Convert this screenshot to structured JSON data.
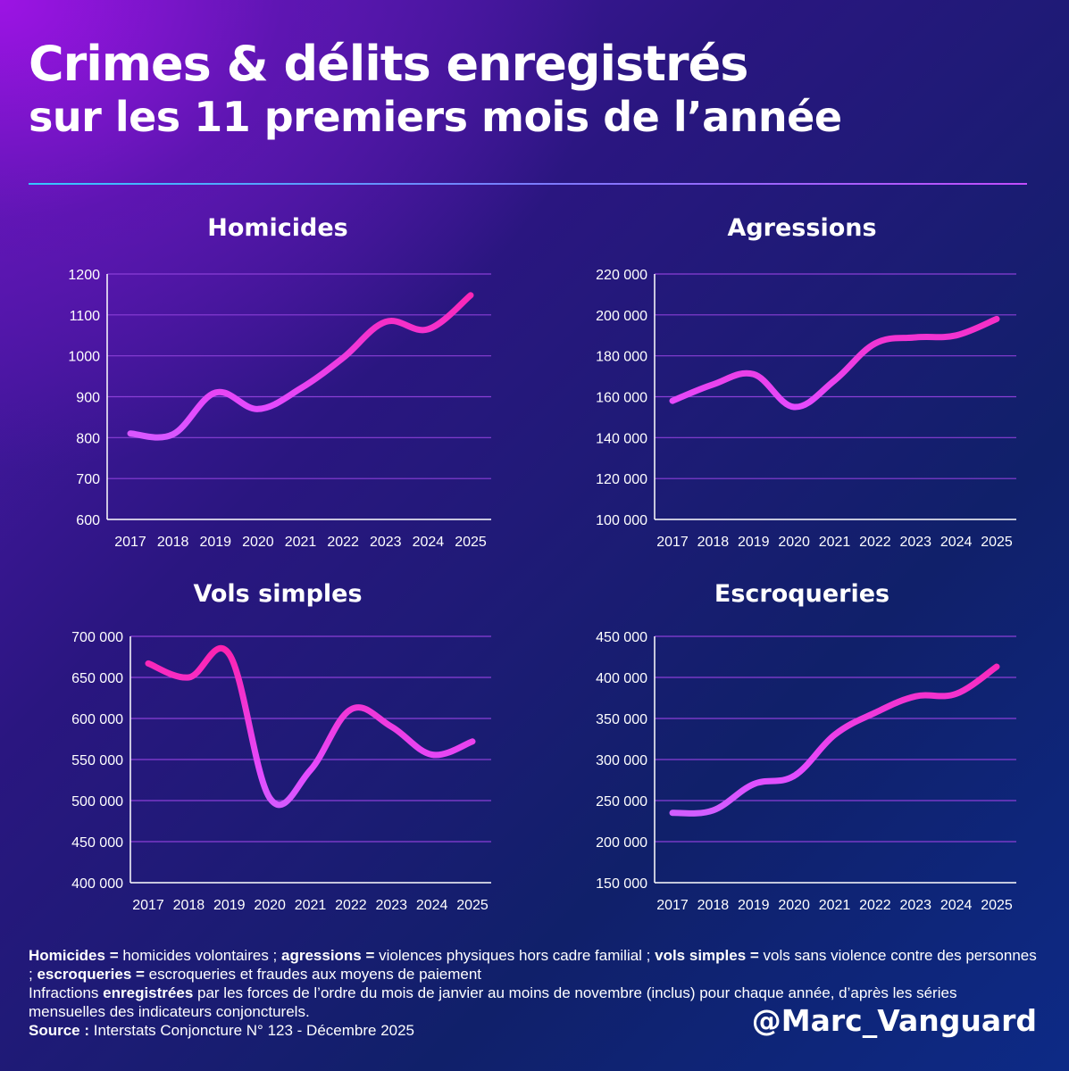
{
  "title": {
    "line1": "Crimes & délits enregistrés",
    "line2": "sur les 11 premiers mois de l’année"
  },
  "colors": {
    "line_low": "#b47bff",
    "line_high": "#ff1fa8",
    "grid": "#8a3fd6",
    "axis": "#ffffff"
  },
  "chart_data": [
    {
      "id": "homicides",
      "type": "line",
      "title": "Homicides",
      "categories": [
        "2017",
        "2018",
        "2019",
        "2020",
        "2021",
        "2022",
        "2023",
        "2024",
        "2025"
      ],
      "values": [
        810,
        808,
        910,
        870,
        920,
        995,
        1083,
        1065,
        1148
      ],
      "yticks": [
        600,
        700,
        800,
        900,
        1000,
        1100,
        1200
      ],
      "ytick_labels": [
        "600",
        "700",
        "800",
        "900",
        "1000",
        "1100",
        "1200"
      ],
      "ylim": [
        600,
        1200
      ]
    },
    {
      "id": "agressions",
      "type": "line",
      "title": "Agressions",
      "categories": [
        "2017",
        "2018",
        "2019",
        "2020",
        "2021",
        "2022",
        "2023",
        "2024",
        "2025"
      ],
      "values": [
        158000,
        166000,
        171000,
        155000,
        168000,
        186000,
        189000,
        190000,
        198000
      ],
      "yticks": [
        100000,
        120000,
        140000,
        160000,
        180000,
        200000,
        220000
      ],
      "ytick_labels": [
        "100 000",
        "120 000",
        "140 000",
        "160 000",
        "180 000",
        "200 000",
        "220 000"
      ],
      "ylim": [
        100000,
        220000
      ]
    },
    {
      "id": "vols",
      "type": "line",
      "title": "Vols simples",
      "categories": [
        "2017",
        "2018",
        "2019",
        "2020",
        "2021",
        "2022",
        "2023",
        "2024",
        "2025"
      ],
      "values": [
        667000,
        650000,
        678000,
        503000,
        537000,
        611000,
        590000,
        556000,
        572000
      ],
      "yticks": [
        400000,
        450000,
        500000,
        550000,
        600000,
        650000,
        700000
      ],
      "ytick_labels": [
        "400 000",
        "450 000",
        "500 000",
        "550 000",
        "600 000",
        "650 000",
        "700 000"
      ],
      "ylim": [
        400000,
        700000
      ]
    },
    {
      "id": "escroqueries",
      "type": "line",
      "title": "Escroqueries",
      "categories": [
        "2017",
        "2018",
        "2019",
        "2020",
        "2021",
        "2022",
        "2023",
        "2024",
        "2025"
      ],
      "values": [
        235000,
        238000,
        270000,
        280000,
        330000,
        357000,
        377000,
        380000,
        413000
      ],
      "yticks": [
        150000,
        200000,
        250000,
        300000,
        350000,
        400000,
        450000
      ],
      "ytick_labels": [
        "150 000",
        "200 000",
        "250 000",
        "300 000",
        "350 000",
        "400 000",
        "450 000"
      ],
      "ylim": [
        150000,
        450000
      ]
    }
  ],
  "footer": {
    "def1_term": "Homicides =",
    "def1_text": " homicides volontaires ; ",
    "def2_term": "agressions =",
    "def2_text": " violences physiques hors cadre familial ; ",
    "def3_term": "vols simples =",
    "def3_text": " vols sans violence contre des personnes ; ",
    "def4_term": "escroqueries =",
    "def4_text": " escroqueries et fraudes aux moyens de paiement",
    "note_prefix": "Infractions ",
    "note_term": "enregistrées",
    "note_text": " par les forces de l’ordre du mois de janvier au moins de novembre (inclus) pour chaque année, d’après les séries mensuelles des indicateurs conjoncturels.",
    "source_label": "Source :",
    "source_text": " Interstats Conjoncture N° 123 - Décembre 2025"
  },
  "handle": "@Marc_Vanguard"
}
